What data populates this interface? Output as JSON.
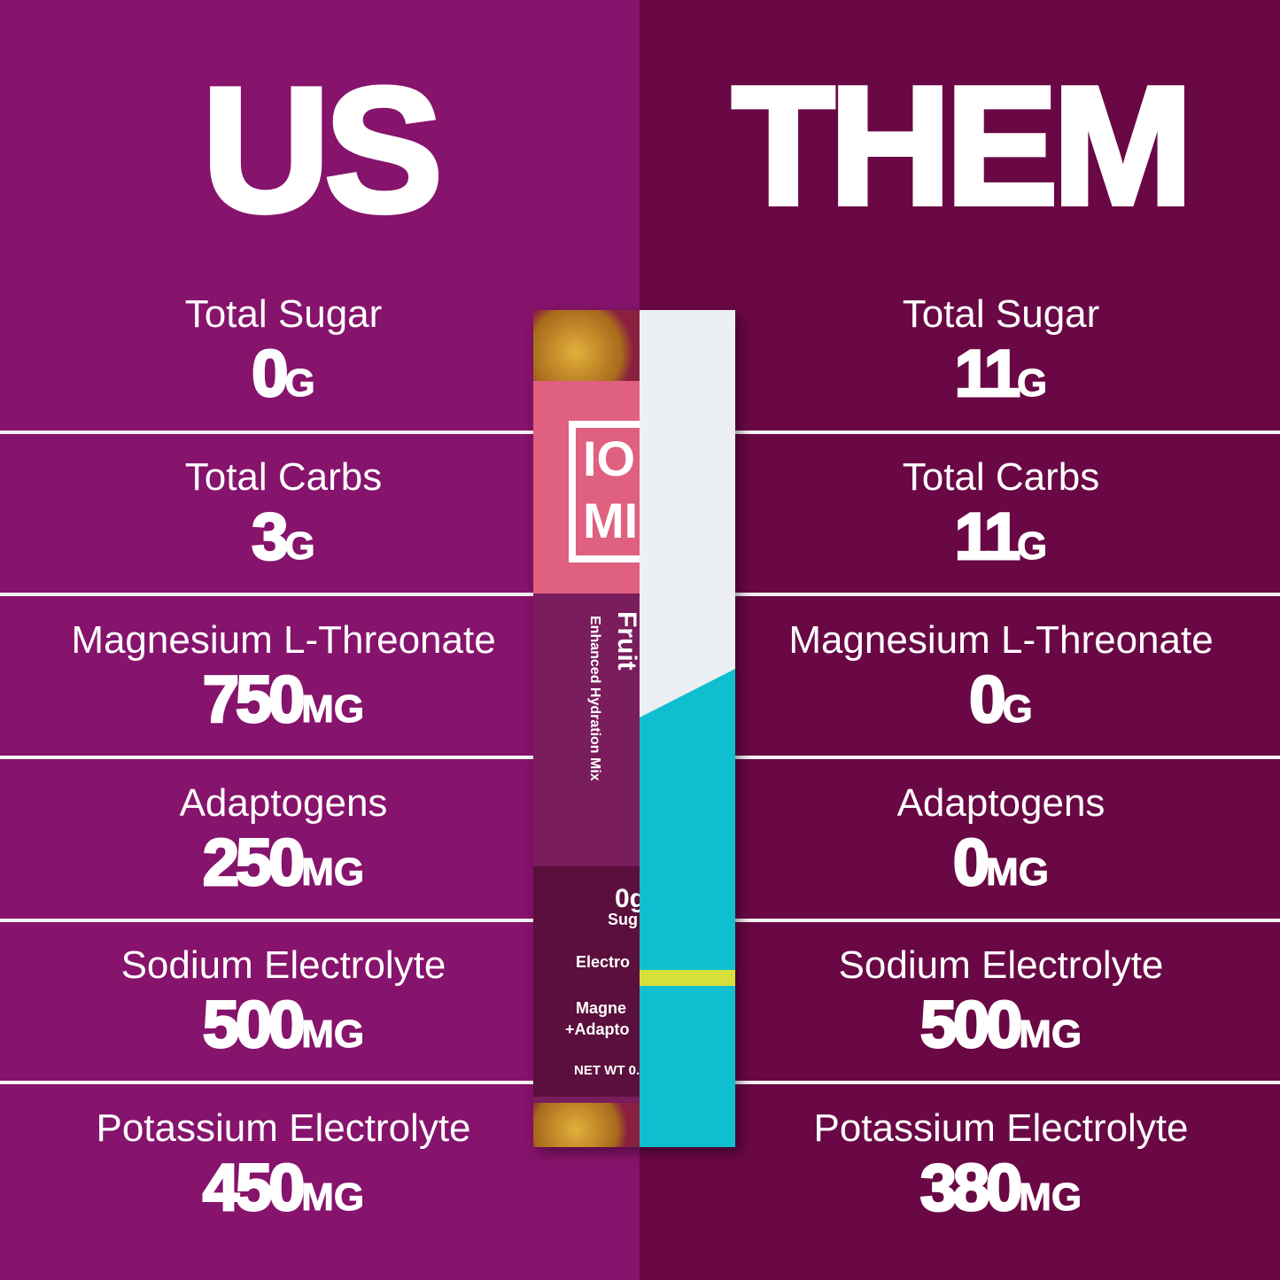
{
  "us": {
    "title": "US",
    "rows": [
      {
        "label": "Total Sugar",
        "value": "0",
        "unit": "G"
      },
      {
        "label": "Total Carbs",
        "value": "3",
        "unit": "G"
      },
      {
        "label": "Magnesium L-Threonate",
        "value": "750",
        "unit": "MG"
      },
      {
        "label": "Adaptogens",
        "value": "250",
        "unit": "MG"
      },
      {
        "label": "Sodium Electrolyte",
        "value": "500",
        "unit": "MG"
      },
      {
        "label": "Potassium Electrolyte",
        "value": "450",
        "unit": "MG"
      }
    ]
  },
  "them": {
    "title": "THEM",
    "rows": [
      {
        "label": "Total Sugar",
        "value": "11",
        "unit": "G"
      },
      {
        "label": "Total Carbs",
        "value": "11",
        "unit": "G"
      },
      {
        "label": "Magnesium L-Threonate",
        "value": "0",
        "unit": "G"
      },
      {
        "label": "Adaptogens",
        "value": "0",
        "unit": "MG"
      },
      {
        "label": "Sodium Electrolyte",
        "value": "500",
        "unit": "MG"
      },
      {
        "label": "Potassium Electrolyte",
        "value": "380",
        "unit": "MG"
      }
    ]
  },
  "packet": {
    "logo_top": "IO",
    "logo_bottom": "MI",
    "flavor": "Fruit",
    "subtitle": "Enhanced Hydration Mix",
    "sugar_value": "0g",
    "sugar_label": "Sug",
    "electro": "Electro",
    "magne": "Magne",
    "adapt": "+Adapto",
    "netwt": "NET WT 0.2"
  },
  "colors": {
    "us_bg": "#86136c",
    "them_bg": "#6a0845",
    "competitor_teal": "#10bfcf"
  }
}
